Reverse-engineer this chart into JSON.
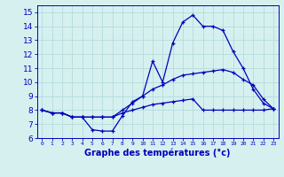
{
  "xlabel": "Graphe des températures (°c)",
  "ylabel": "",
  "background_color": "#d6f0f0",
  "grid_color": "#b8dede",
  "line_color": "#0000bb",
  "x": [
    0,
    1,
    2,
    3,
    4,
    5,
    6,
    7,
    8,
    9,
    10,
    11,
    12,
    13,
    14,
    15,
    16,
    17,
    18,
    19,
    20,
    21,
    22,
    23
  ],
  "line1": [
    8.0,
    7.8,
    7.8,
    7.5,
    7.5,
    6.6,
    6.5,
    6.5,
    7.6,
    8.6,
    9.0,
    11.5,
    10.0,
    12.8,
    14.3,
    14.8,
    14.0,
    14.0,
    13.7,
    12.2,
    11.0,
    9.5,
    8.5,
    8.1
  ],
  "line2": [
    8.0,
    7.8,
    7.8,
    7.5,
    7.5,
    7.5,
    7.5,
    7.5,
    8.0,
    8.5,
    9.0,
    9.5,
    9.8,
    10.2,
    10.5,
    10.6,
    10.7,
    10.8,
    10.9,
    10.7,
    10.2,
    9.8,
    8.8,
    8.1
  ],
  "line3": [
    8.0,
    7.8,
    7.8,
    7.5,
    7.5,
    7.5,
    7.5,
    7.5,
    7.8,
    8.0,
    8.2,
    8.4,
    8.5,
    8.6,
    8.7,
    8.8,
    8.0,
    8.0,
    8.0,
    8.0,
    8.0,
    8.0,
    8.0,
    8.1
  ],
  "ylim": [
    6,
    15.5
  ],
  "yticks": [
    6,
    7,
    8,
    9,
    10,
    11,
    12,
    13,
    14,
    15
  ],
  "xticks": [
    0,
    1,
    2,
    3,
    4,
    5,
    6,
    7,
    8,
    9,
    10,
    11,
    12,
    13,
    14,
    15,
    16,
    17,
    18,
    19,
    20,
    21,
    22,
    23
  ],
  "xlabel_fontsize": 7,
  "xtick_fontsize": 4.5,
  "ytick_fontsize": 6.5
}
